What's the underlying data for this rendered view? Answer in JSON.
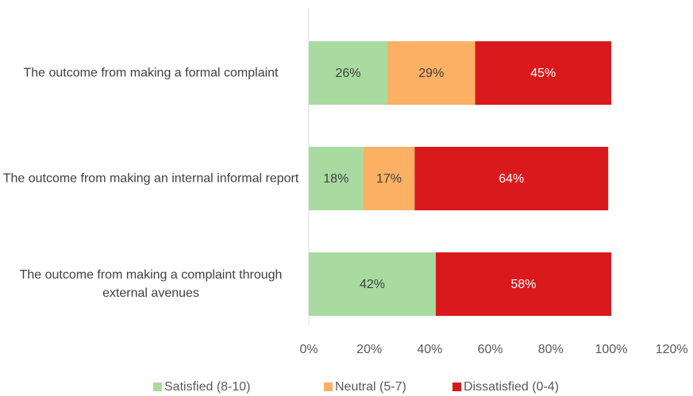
{
  "chart_data": {
    "type": "bar",
    "orientation": "horizontal",
    "stacked": true,
    "categories": [
      "The outcome from making a formal complaint",
      "The outcome from making an internal informal report",
      "The outcome from making a complaint through external avenues"
    ],
    "series": [
      {
        "name": "Satisfied (8-10)",
        "color": "#a9dba0",
        "values": [
          26,
          18,
          42
        ],
        "value_labels": [
          "26%",
          "18%",
          "42%"
        ]
      },
      {
        "name": "Neutral (5-7)",
        "color": "#fbb064",
        "values": [
          29,
          17,
          null
        ],
        "value_labels": [
          "29%",
          "17%",
          null
        ]
      },
      {
        "name": "Dissatisfied (0-4)",
        "color": "#d9191c",
        "values": [
          45,
          64,
          58
        ],
        "value_labels": [
          "45%",
          "64%",
          "58%"
        ]
      }
    ],
    "xlim": [
      0,
      120
    ],
    "xticks": [
      {
        "value": 0,
        "label": "0%"
      },
      {
        "value": 20,
        "label": "20%"
      },
      {
        "value": 40,
        "label": "40%"
      },
      {
        "value": 60,
        "label": "60%"
      },
      {
        "value": 80,
        "label": "80%"
      },
      {
        "value": 100,
        "label": "100%"
      },
      {
        "value": 120,
        "label": "120%"
      }
    ],
    "grid": false,
    "legend": "bottom"
  }
}
